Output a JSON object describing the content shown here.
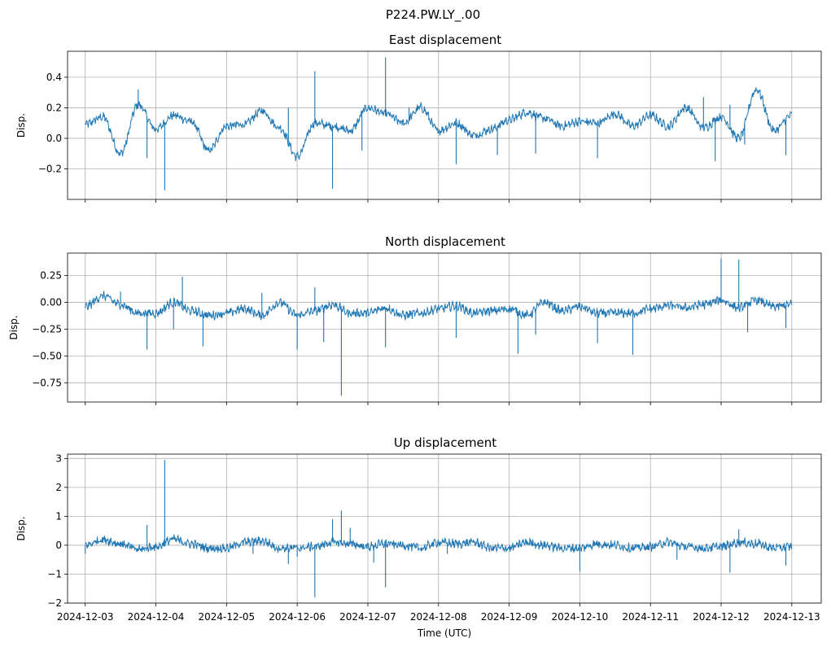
{
  "figure": {
    "suptitle": "P224.PW.LY_.00",
    "xlabel": "Time (UTC)",
    "x_ticks": [
      "2024-12-03",
      "2024-12-04",
      "2024-12-05",
      "2024-12-06",
      "2024-12-07",
      "2024-12-08",
      "2024-12-09",
      "2024-12-10",
      "2024-12-11",
      "2024-12-12",
      "2024-12-13"
    ],
    "line_color": "#1f77b4",
    "grid_color": "#b0b0b0"
  },
  "chart_data": [
    {
      "type": "line",
      "title": "East displacement",
      "ylabel": "Disp.",
      "xlim": [
        "2024-12-02T18:00",
        "2024-12-13T10:00"
      ],
      "ylim": [
        -0.4,
        0.57
      ],
      "yticks": [
        0.4,
        0.2,
        0.0,
        -0.2
      ],
      "ytick_labels": [
        "0.4",
        "0.2",
        "0.0",
        "−0.2"
      ],
      "grid": true,
      "series": [
        {
          "x": [
            "2024-12-03T00:00",
            "2024-12-03T06:00",
            "2024-12-03T12:00",
            "2024-12-03T18:00",
            "2024-12-04T00:00",
            "2024-12-04T06:00",
            "2024-12-04T12:00",
            "2024-12-04T18:00",
            "2024-12-05T00:00",
            "2024-12-05T06:00",
            "2024-12-05T12:00",
            "2024-12-05T18:00",
            "2024-12-06T00:00",
            "2024-12-06T06:00",
            "2024-12-06T12:00",
            "2024-12-06T18:00",
            "2024-12-07T00:00",
            "2024-12-07T06:00",
            "2024-12-07T12:00",
            "2024-12-07T18:00",
            "2024-12-08T00:00",
            "2024-12-08T06:00",
            "2024-12-08T12:00",
            "2024-12-08T18:00",
            "2024-12-09T00:00",
            "2024-12-09T06:00",
            "2024-12-09T12:00",
            "2024-12-09T18:00",
            "2024-12-10T00:00",
            "2024-12-10T06:00",
            "2024-12-10T12:00",
            "2024-12-10T18:00",
            "2024-12-11T00:00",
            "2024-12-11T06:00",
            "2024-12-11T12:00",
            "2024-12-11T18:00",
            "2024-12-12T00:00",
            "2024-12-12T06:00",
            "2024-12-12T12:00",
            "2024-12-12T18:00",
            "2024-12-13T00:00"
          ],
          "y": [
            0.09,
            0.14,
            -0.1,
            0.22,
            0.06,
            0.15,
            0.11,
            -0.08,
            0.08,
            0.09,
            0.18,
            0.07,
            -0.12,
            0.1,
            0.08,
            0.05,
            0.2,
            0.16,
            0.1,
            0.2,
            0.05,
            0.1,
            0.02,
            0.06,
            0.12,
            0.17,
            0.13,
            0.08,
            0.11,
            0.1,
            0.16,
            0.08,
            0.15,
            0.08,
            0.2,
            0.07,
            0.14,
            0.0,
            0.32,
            0.05,
            0.15
          ]
        }
      ],
      "spikes": [
        {
          "x": "2024-12-03T18:00",
          "y": 0.32
        },
        {
          "x": "2024-12-04T03:00",
          "y": -0.34
        },
        {
          "x": "2024-12-03T21:00",
          "y": -0.13
        },
        {
          "x": "2024-12-06T06:00",
          "y": 0.44
        },
        {
          "x": "2024-12-06T12:00",
          "y": -0.33
        },
        {
          "x": "2024-12-07T06:00",
          "y": 0.53
        },
        {
          "x": "2024-12-05T21:00",
          "y": 0.2
        },
        {
          "x": "2024-12-06T22:00",
          "y": -0.08
        },
        {
          "x": "2024-12-07T14:00",
          "y": 0.2
        },
        {
          "x": "2024-12-08T06:00",
          "y": -0.17
        },
        {
          "x": "2024-12-08T20:00",
          "y": -0.11
        },
        {
          "x": "2024-12-09T09:00",
          "y": -0.1
        },
        {
          "x": "2024-12-10T06:00",
          "y": -0.13
        },
        {
          "x": "2024-12-11T18:00",
          "y": 0.27
        },
        {
          "x": "2024-12-11T22:00",
          "y": -0.15
        },
        {
          "x": "2024-12-12T03:00",
          "y": 0.22
        },
        {
          "x": "2024-12-12T08:00",
          "y": -0.04
        },
        {
          "x": "2024-12-12T22:00",
          "y": -0.11
        }
      ]
    },
    {
      "type": "line",
      "title": "North displacement",
      "ylabel": "Disp.",
      "xlim": [
        "2024-12-02T18:00",
        "2024-12-13T10:00"
      ],
      "ylim": [
        -0.93,
        0.46
      ],
      "yticks": [
        0.25,
        0.0,
        -0.25,
        -0.5,
        -0.75
      ],
      "ytick_labels": [
        "0.25",
        "0.00",
        "−0.25",
        "−0.50",
        "−0.75"
      ],
      "grid": true,
      "series": [
        {
          "x": [
            "2024-12-03T00:00",
            "2024-12-03T06:00",
            "2024-12-03T12:00",
            "2024-12-03T18:00",
            "2024-12-04T00:00",
            "2024-12-04T06:00",
            "2024-12-04T12:00",
            "2024-12-04T18:00",
            "2024-12-05T00:00",
            "2024-12-05T06:00",
            "2024-12-05T12:00",
            "2024-12-05T18:00",
            "2024-12-06T00:00",
            "2024-12-06T06:00",
            "2024-12-06T12:00",
            "2024-12-06T18:00",
            "2024-12-07T00:00",
            "2024-12-07T06:00",
            "2024-12-07T12:00",
            "2024-12-07T18:00",
            "2024-12-08T00:00",
            "2024-12-08T06:00",
            "2024-12-08T12:00",
            "2024-12-08T18:00",
            "2024-12-09T00:00",
            "2024-12-09T06:00",
            "2024-12-09T12:00",
            "2024-12-09T18:00",
            "2024-12-10T00:00",
            "2024-12-10T06:00",
            "2024-12-10T12:00",
            "2024-12-10T18:00",
            "2024-12-11T00:00",
            "2024-12-11T06:00",
            "2024-12-11T12:00",
            "2024-12-11T18:00",
            "2024-12-12T00:00",
            "2024-12-12T06:00",
            "2024-12-12T12:00",
            "2024-12-12T18:00",
            "2024-12-13T00:00"
          ],
          "y": [
            -0.04,
            0.06,
            -0.02,
            -0.1,
            -0.1,
            0.0,
            -0.08,
            -0.12,
            -0.1,
            -0.06,
            -0.12,
            0.0,
            -0.12,
            -0.08,
            -0.02,
            -0.1,
            -0.1,
            -0.05,
            -0.12,
            -0.1,
            -0.06,
            -0.03,
            -0.1,
            -0.08,
            -0.06,
            -0.12,
            0.0,
            -0.08,
            -0.04,
            -0.1,
            -0.1,
            -0.1,
            -0.06,
            -0.03,
            -0.05,
            -0.02,
            0.02,
            -0.05,
            0.02,
            -0.04,
            -0.02
          ]
        }
      ],
      "spikes": [
        {
          "x": "2024-12-03T12:00",
          "y": 0.1
        },
        {
          "x": "2024-12-03T21:00",
          "y": -0.44
        },
        {
          "x": "2024-12-04T06:00",
          "y": -0.25
        },
        {
          "x": "2024-12-04T09:00",
          "y": 0.24
        },
        {
          "x": "2024-12-04T16:00",
          "y": -0.41
        },
        {
          "x": "2024-12-05T12:00",
          "y": 0.09
        },
        {
          "x": "2024-12-06T00:00",
          "y": -0.44
        },
        {
          "x": "2024-12-06T09:00",
          "y": -0.37
        },
        {
          "x": "2024-12-06T15:00",
          "y": -0.87
        },
        {
          "x": "2024-12-07T06:00",
          "y": -0.42
        },
        {
          "x": "2024-12-06T06:00",
          "y": 0.14
        },
        {
          "x": "2024-12-08T06:00",
          "y": -0.33
        },
        {
          "x": "2024-12-09T03:00",
          "y": -0.48
        },
        {
          "x": "2024-12-09T09:00",
          "y": -0.3
        },
        {
          "x": "2024-12-10T06:00",
          "y": -0.38
        },
        {
          "x": "2024-12-10T18:00",
          "y": -0.49
        },
        {
          "x": "2024-12-12T00:00",
          "y": 0.41
        },
        {
          "x": "2024-12-12T06:00",
          "y": 0.4
        },
        {
          "x": "2024-12-12T09:00",
          "y": -0.28
        },
        {
          "x": "2024-12-12T22:00",
          "y": -0.24
        }
      ]
    },
    {
      "type": "line",
      "title": "Up displacement",
      "ylabel": "Disp.",
      "xlim": [
        "2024-12-02T18:00",
        "2024-12-13T10:00"
      ],
      "ylim": [
        -2.0,
        3.15
      ],
      "yticks": [
        3,
        2,
        1,
        0,
        -1,
        -2
      ],
      "ytick_labels": [
        "3",
        "2",
        "1",
        "0",
        "−1",
        "−2"
      ],
      "grid": true,
      "series": [
        {
          "x": [
            "2024-12-03T00:00",
            "2024-12-03T06:00",
            "2024-12-03T12:00",
            "2024-12-03T18:00",
            "2024-12-04T00:00",
            "2024-12-04T06:00",
            "2024-12-04T12:00",
            "2024-12-04T18:00",
            "2024-12-05T00:00",
            "2024-12-05T06:00",
            "2024-12-05T12:00",
            "2024-12-05T18:00",
            "2024-12-06T00:00",
            "2024-12-06T06:00",
            "2024-12-06T12:00",
            "2024-12-06T18:00",
            "2024-12-07T00:00",
            "2024-12-07T06:00",
            "2024-12-07T12:00",
            "2024-12-07T18:00",
            "2024-12-08T00:00",
            "2024-12-08T06:00",
            "2024-12-08T12:00",
            "2024-12-08T18:00",
            "2024-12-09T00:00",
            "2024-12-09T06:00",
            "2024-12-09T12:00",
            "2024-12-09T18:00",
            "2024-12-10T00:00",
            "2024-12-10T06:00",
            "2024-12-10T12:00",
            "2024-12-10T18:00",
            "2024-12-11T00:00",
            "2024-12-11T06:00",
            "2024-12-11T12:00",
            "2024-12-11T18:00",
            "2024-12-12T00:00",
            "2024-12-12T06:00",
            "2024-12-12T12:00",
            "2024-12-12T18:00",
            "2024-12-13T00:00"
          ],
          "y": [
            0.0,
            0.2,
            0.05,
            -0.15,
            -0.05,
            0.2,
            0.05,
            -0.1,
            -0.1,
            0.1,
            0.15,
            -0.1,
            -0.1,
            -0.05,
            0.1,
            0.05,
            -0.05,
            0.05,
            0.0,
            -0.1,
            0.1,
            0.05,
            0.1,
            -0.1,
            -0.1,
            0.1,
            0.0,
            -0.1,
            -0.1,
            0.05,
            0.0,
            -0.1,
            -0.05,
            0.1,
            -0.05,
            -0.1,
            -0.05,
            0.1,
            0.05,
            -0.1,
            -0.05
          ]
        }
      ],
      "spikes": [
        {
          "x": "2024-12-03T00:00",
          "y": -0.3
        },
        {
          "x": "2024-12-03T21:00",
          "y": 0.7
        },
        {
          "x": "2024-12-04T03:00",
          "y": 2.95
        },
        {
          "x": "2024-12-05T09:00",
          "y": -0.3
        },
        {
          "x": "2024-12-05T21:00",
          "y": -0.65
        },
        {
          "x": "2024-12-06T00:00",
          "y": -0.4
        },
        {
          "x": "2024-12-06T06:00",
          "y": -1.8
        },
        {
          "x": "2024-12-06T12:00",
          "y": 0.9
        },
        {
          "x": "2024-12-06T15:00",
          "y": 1.2
        },
        {
          "x": "2024-12-06T18:00",
          "y": 0.6
        },
        {
          "x": "2024-12-07T06:00",
          "y": -1.45
        },
        {
          "x": "2024-12-07T02:00",
          "y": -0.6
        },
        {
          "x": "2024-12-08T03:00",
          "y": -0.3
        },
        {
          "x": "2024-12-10T00:00",
          "y": -0.9
        },
        {
          "x": "2024-12-11T09:00",
          "y": -0.5
        },
        {
          "x": "2024-12-12T03:00",
          "y": -0.95
        },
        {
          "x": "2024-12-12T06:00",
          "y": 0.55
        },
        {
          "x": "2024-12-12T22:00",
          "y": -0.7
        }
      ]
    }
  ]
}
